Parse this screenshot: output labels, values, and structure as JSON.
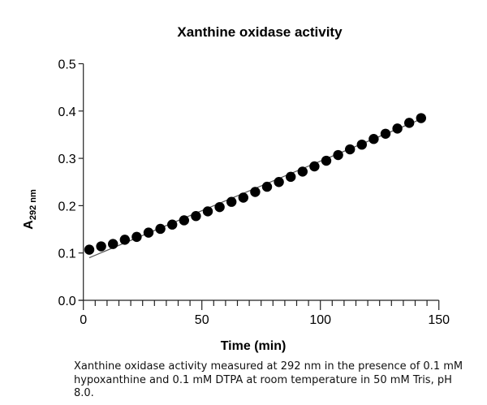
{
  "chart_data": {
    "type": "scatter",
    "title": "Xanthine oxidase activity",
    "xlabel": "Time (min)",
    "ylabel": {
      "main": "A",
      "subscript": "292 nm"
    },
    "xlim": [
      0,
      150
    ],
    "ylim": [
      0,
      0.5
    ],
    "xticks": [
      "0",
      "50",
      "100",
      "150"
    ],
    "yticks": [
      "0.0",
      "0.1",
      "0.2",
      "0.3",
      "0.4",
      "0.5"
    ],
    "grid": false,
    "legend": "none",
    "x": [
      2.5,
      7.5,
      12.5,
      17.5,
      22.5,
      27.5,
      32.5,
      37.5,
      42.5,
      47.5,
      52.5,
      57.5,
      62.5,
      67.5,
      72.5,
      77.5,
      82.5,
      87.5,
      92.5,
      97.5,
      102.5,
      107.5,
      112.5,
      117.5,
      122.5,
      127.5,
      132.5,
      137.5,
      142.5
    ],
    "y": [
      0.107,
      0.114,
      0.119,
      0.128,
      0.134,
      0.143,
      0.151,
      0.16,
      0.169,
      0.178,
      0.188,
      0.197,
      0.208,
      0.217,
      0.229,
      0.24,
      0.25,
      0.261,
      0.272,
      0.283,
      0.295,
      0.307,
      0.319,
      0.329,
      0.341,
      0.352,
      0.363,
      0.375,
      0.385
    ],
    "fit_line": {
      "x": [
        2.5,
        142.5
      ],
      "y": [
        0.09,
        0.383
      ]
    },
    "marker_color": "#000000",
    "line_color": "#555555"
  },
  "caption": "Xanthine oxidase activity measured at 292 nm in the presence of 0.1 mM hypoxanthine and 0.1 mM DTPA at room temperature in 50 mM Tris, pH 8.0."
}
